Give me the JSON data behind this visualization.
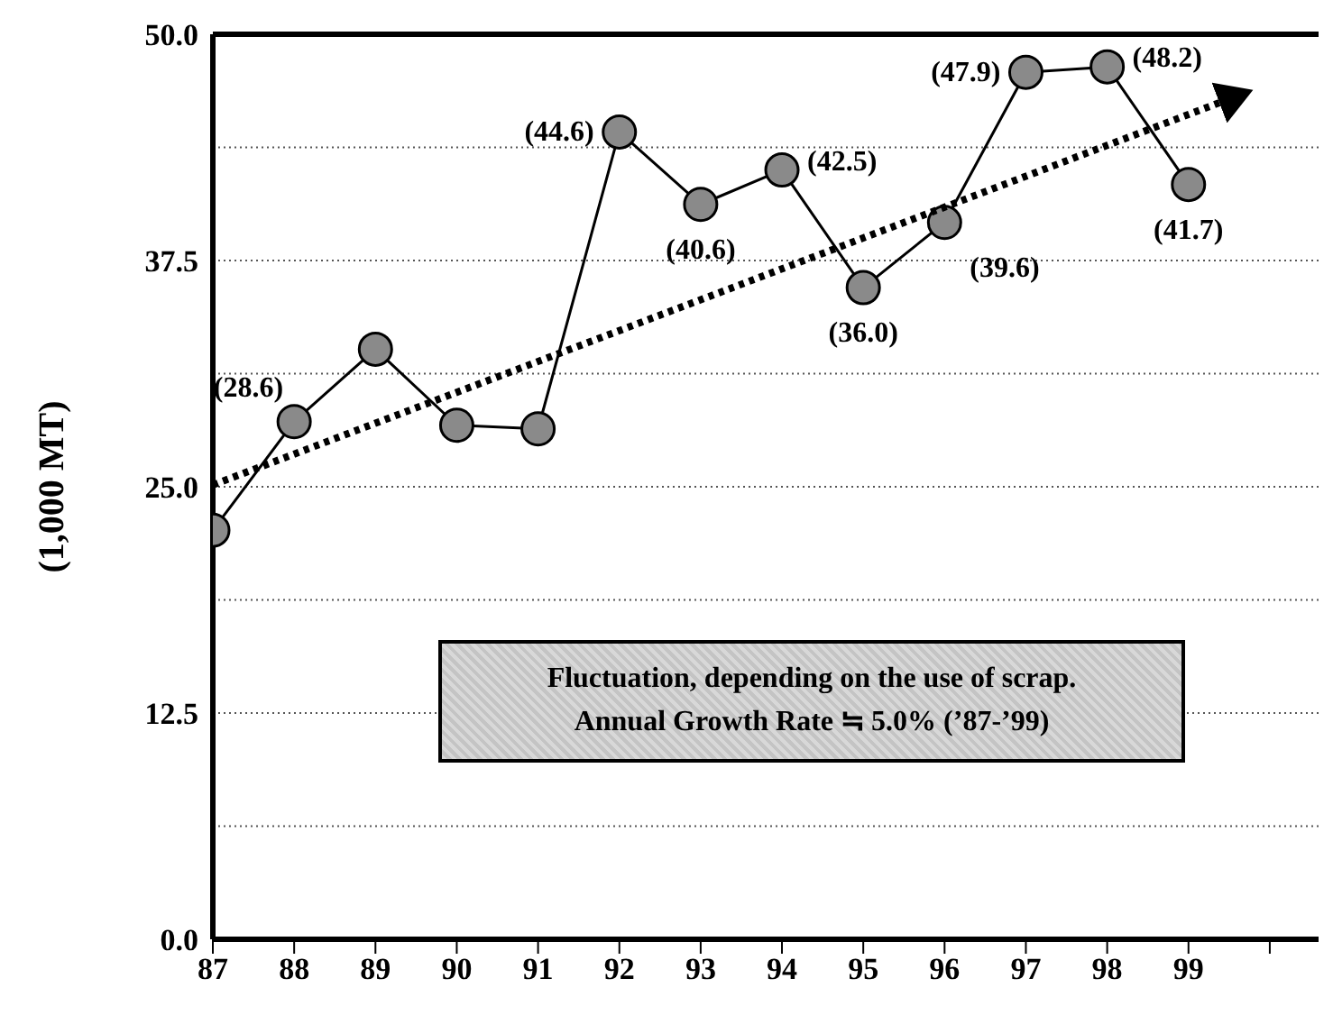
{
  "chart_data": {
    "type": "line",
    "ylabel": "(1,000 MT)",
    "annotations": [
      "Fluctuation, depending on the use of scrap.",
      "Annual Growth Rate ≒ 5.0% (’87-’99)"
    ],
    "x": [
      87,
      88,
      89,
      90,
      91,
      92,
      93,
      94,
      95,
      96,
      97,
      98,
      99
    ],
    "xlim": [
      87,
      100.6
    ],
    "xticks": [
      87,
      88,
      89,
      90,
      91,
      92,
      93,
      94,
      95,
      96,
      97,
      98,
      99,
      {
        "value": 100,
        "label": null
      }
    ],
    "ylim": [
      0,
      50
    ],
    "yticks": [
      {
        "value": 0,
        "label": "0.0"
      },
      {
        "value": 6.25,
        "label": null
      },
      12.5,
      {
        "value": 18.75,
        "label": null
      },
      {
        "value": 25,
        "label": "25.0"
      },
      {
        "value": 31.25,
        "label": null
      },
      37.5,
      {
        "value": 43.75,
        "label": null
      },
      {
        "value": 50,
        "label": "50.0"
      }
    ],
    "grid": "y",
    "marker": "circle",
    "line_style": "solid",
    "series": [
      {
        "color": "#000000",
        "values": [
          22.6,
          28.6,
          32.6,
          28.4,
          28.2,
          44.6,
          40.6,
          42.5,
          36.0,
          39.6,
          47.9,
          48.2,
          41.7
        ],
        "value_labels": [
          null,
          "(28.6)",
          null,
          null,
          null,
          "(44.6)",
          "(40.6)",
          "(42.5)",
          "(36.0)",
          "(39.6)",
          "(47.9)",
          "(48.2)",
          "(41.7)"
        ]
      }
    ]
  }
}
